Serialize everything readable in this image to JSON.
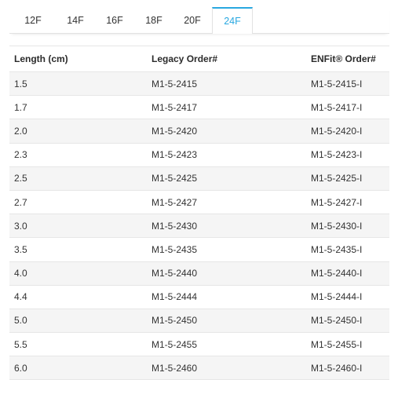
{
  "tabs": [
    {
      "label": "12F",
      "active": false
    },
    {
      "label": "14F",
      "active": false
    },
    {
      "label": "16F",
      "active": false
    },
    {
      "label": "18F",
      "active": false
    },
    {
      "label": "20F",
      "active": false
    },
    {
      "label": "24F",
      "active": true
    }
  ],
  "table": {
    "headers": [
      "Length (cm)",
      "Legacy Order#",
      "ENFit® Order#"
    ],
    "rows": [
      [
        "1.5",
        "M1-5-2415",
        "M1-5-2415-I"
      ],
      [
        "1.7",
        "M1-5-2417",
        "M1-5-2417-I"
      ],
      [
        "2.0",
        "M1-5-2420",
        "M1-5-2420-I"
      ],
      [
        "2.3",
        "M1-5-2423",
        "M1-5-2423-I"
      ],
      [
        "2.5",
        "M1-5-2425",
        "M1-5-2425-I"
      ],
      [
        "2.7",
        "M1-5-2427",
        "M1-5-2427-I"
      ],
      [
        "3.0",
        "M1-5-2430",
        "M1-5-2430-I"
      ],
      [
        "3.5",
        "M1-5-2435",
        "M1-5-2435-I"
      ],
      [
        "4.0",
        "M1-5-2440",
        "M1-5-2440-I"
      ],
      [
        "4.4",
        "M1-5-2444",
        "M1-5-2444-I"
      ],
      [
        "5.0",
        "M1-5-2450",
        "M1-5-2450-I"
      ],
      [
        "5.5",
        "M1-5-2455",
        "M1-5-2455-I"
      ],
      [
        "6.0",
        "M1-5-2460",
        "M1-5-2460-I"
      ]
    ]
  },
  "colors": {
    "accent": "#29a8e0",
    "row_stripe": "#f5f5f5",
    "border": "#e6e6e6"
  }
}
